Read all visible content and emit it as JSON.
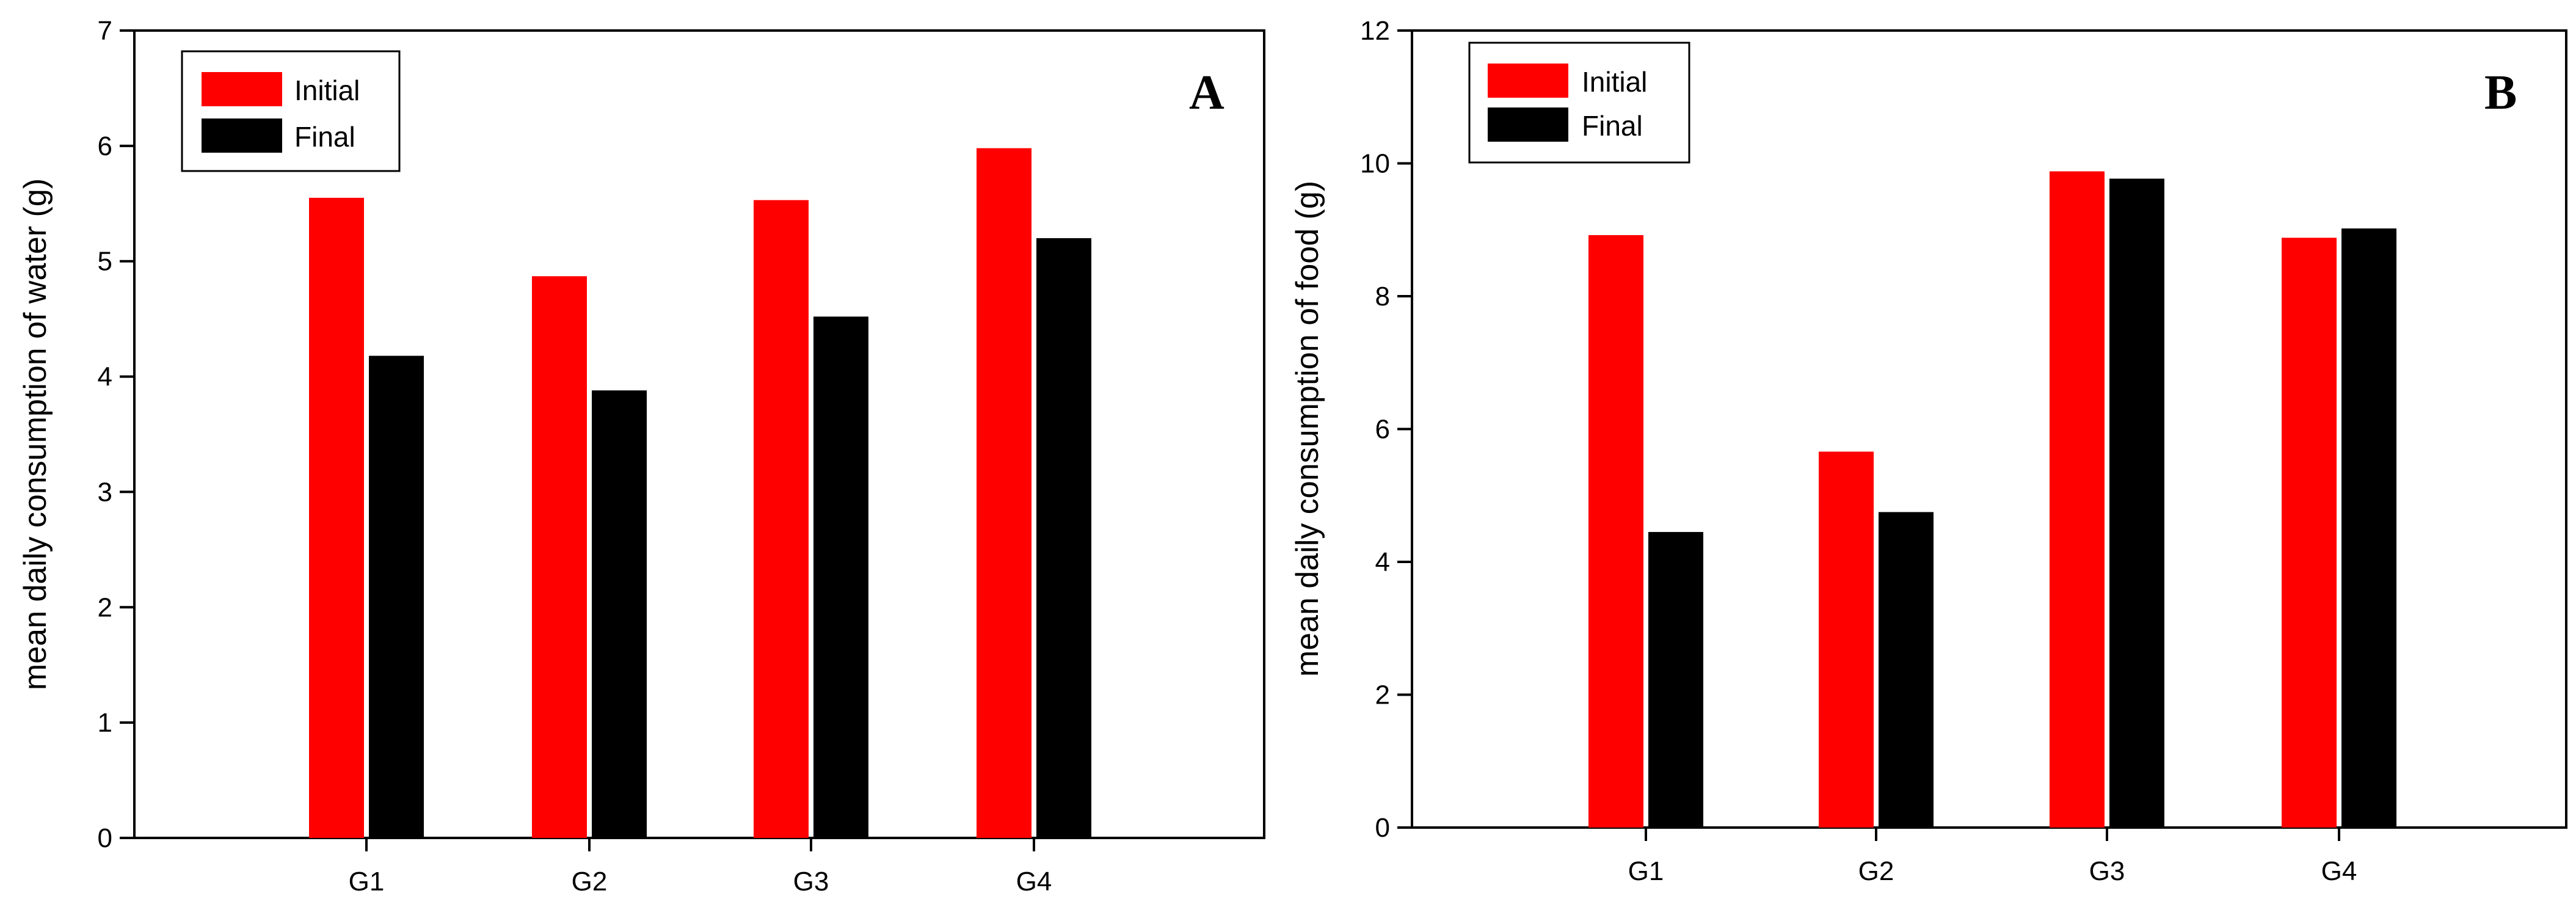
{
  "chart_data": [
    {
      "panel": "A",
      "type": "bar",
      "title": "",
      "xlabel": "",
      "ylabel": "mean daily consumption of water (g)",
      "ylim": [
        0,
        7
      ],
      "yticks": [
        0,
        1,
        2,
        3,
        4,
        5,
        6,
        7
      ],
      "categories": [
        "G1",
        "G2",
        "G3",
        "G4"
      ],
      "series": [
        {
          "name": "Initial",
          "color": "#ff0000",
          "values": [
            5.55,
            4.87,
            5.53,
            5.98
          ]
        },
        {
          "name": "Final",
          "color": "#000000",
          "values": [
            4.18,
            3.88,
            4.52,
            5.2
          ]
        }
      ],
      "legend_position": "top-left",
      "grid": false
    },
    {
      "panel": "B",
      "type": "bar",
      "title": "",
      "xlabel": "",
      "ylabel": "mean daily consumption of food (g)",
      "ylim": [
        0,
        12
      ],
      "yticks": [
        0,
        2,
        4,
        6,
        8,
        10,
        12
      ],
      "categories": [
        "G1",
        "G2",
        "G3",
        "G4"
      ],
      "series": [
        {
          "name": "Initial",
          "color": "#ff0000",
          "values": [
            8.92,
            5.66,
            9.88,
            8.88
          ]
        },
        {
          "name": "Final",
          "color": "#000000",
          "values": [
            4.45,
            4.75,
            9.77,
            9.02
          ]
        }
      ],
      "legend_position": "top-left",
      "grid": false
    }
  ]
}
